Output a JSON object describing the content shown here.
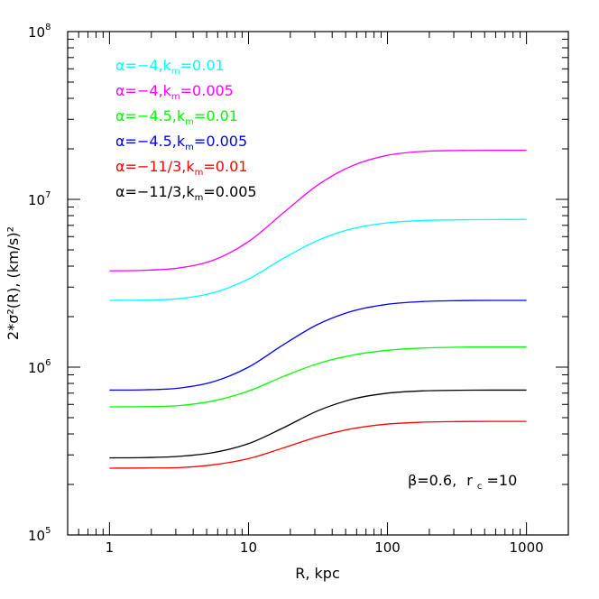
{
  "chart_data": {
    "type": "line",
    "xscale": "log",
    "yscale": "log",
    "xlim": [
      0.5,
      2000
    ],
    "ylim": [
      100000,
      100000000
    ],
    "xlabel": "R, kpc",
    "ylabel": "2*σ²(R), (km/s)²",
    "xticks": [
      {
        "value": 1,
        "label": "1"
      },
      {
        "value": 10,
        "label": "10"
      },
      {
        "value": 100,
        "label": "100"
      },
      {
        "value": 1000,
        "label": "1000"
      }
    ],
    "yticks": [
      {
        "value": 100000,
        "base": "10",
        "exp": "5"
      },
      {
        "value": 1000000,
        "base": "10",
        "exp": "6"
      },
      {
        "value": 10000000,
        "base": "10",
        "exp": "7"
      },
      {
        "value": 100000000,
        "base": "10",
        "exp": "8"
      }
    ],
    "x": [
      1,
      1.78,
      3.16,
      5.62,
      10,
      17.8,
      31.6,
      56.2,
      100,
      178,
      316,
      562,
      1000
    ],
    "series": [
      {
        "alpha": "α=−4,",
        "k": "k",
        "ksub": "m",
        "kval": "=0.01",
        "color": "#00ffff",
        "values": [
          2500000,
          2510000,
          2560000,
          2780000,
          3350000,
          4450000,
          5700000,
          6700000,
          7250000,
          7480000,
          7550000,
          7580000,
          7600000
        ]
      },
      {
        "alpha": "α=−4,",
        "k": "k",
        "ksub": "m",
        "kval": "=0.005",
        "color": "#ff00ff",
        "values": [
          3750000,
          3780000,
          3900000,
          4350000,
          5600000,
          8300000,
          12200000,
          15900000,
          18300000,
          19300000,
          19550000,
          19600000,
          19600000
        ]
      },
      {
        "alpha": "α=−4.5,",
        "k": "k",
        "ksub": "m",
        "kval": "=0.01",
        "color": "#00ff00",
        "values": [
          580000,
          582000,
          590000,
          630000,
          720000,
          880000,
          1050000,
          1180000,
          1260000,
          1300000,
          1315000,
          1320000,
          1320000
        ]
      },
      {
        "alpha": "α=−4.5,",
        "k": "k",
        "ksub": "m",
        "kval": "=0.005",
        "color": "#0000ff",
        "values": [
          730000,
          733000,
          750000,
          820000,
          1000000,
          1360000,
          1800000,
          2160000,
          2370000,
          2460000,
          2490000,
          2500000,
          2500000
        ]
      },
      {
        "alpha": "α=−11/3,",
        "k": "k",
        "ksub": "m",
        "kval": "=0.01",
        "color": "#ff0000",
        "values": [
          250000,
          250500,
          252000,
          262000,
          285000,
          330000,
          385000,
          430000,
          458000,
          470000,
          474000,
          475000,
          475000
        ]
      },
      {
        "alpha": "α=−11/3,",
        "k": "k",
        "ksub": "m",
        "kval": "=0.005",
        "color": "#000000",
        "values": [
          288000,
          289000,
          294000,
          310000,
          350000,
          435000,
          550000,
          645000,
          700000,
          722000,
          728000,
          730000,
          730000
        ]
      }
    ],
    "annotation": {
      "beta": "β=0.6,",
      "r": "r",
      "rsub": "c",
      "rval": "=10"
    }
  }
}
